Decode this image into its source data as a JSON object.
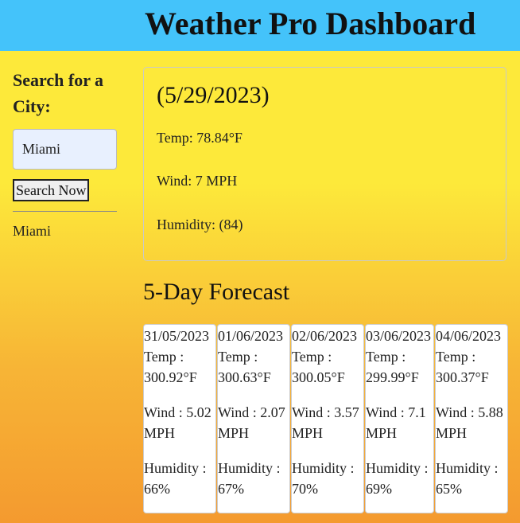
{
  "header": {
    "title": "Weather Pro Dashboard"
  },
  "sidebar": {
    "heading": "Search for a City:",
    "search_input": {
      "value": "Miami",
      "placeholder": ""
    },
    "search_button_label": "Search Now",
    "history": [
      "Miami"
    ]
  },
  "current": {
    "date": "(5/29/2023)",
    "temp": "Temp: 78.84°F",
    "wind": "Wind: 7 MPH",
    "humidity": "Humidity: (84)"
  },
  "forecast": {
    "title": "5-Day Forecast",
    "days": [
      {
        "date": "31/05/2023",
        "temp_label": "Temp :",
        "temp": "300.92°F",
        "wind_label": "Wind : 5.02",
        "wind_unit": "MPH",
        "humidity_label": "Humidity :",
        "humidity": "66%"
      },
      {
        "date": "01/06/2023",
        "temp_label": "Temp :",
        "temp": "300.63°F",
        "wind_label": "Wind : 2.07",
        "wind_unit": "MPH",
        "humidity_label": "Humidity :",
        "humidity": "67%"
      },
      {
        "date": "02/06/2023",
        "temp_label": "Temp :",
        "temp": "300.05°F",
        "wind_label": "Wind : 3.57",
        "wind_unit": "MPH",
        "humidity_label": "Humidity :",
        "humidity": "70%"
      },
      {
        "date": "03/06/2023",
        "temp_label": "Temp :",
        "temp": "299.99°F",
        "wind_label": "Wind : 7.1",
        "wind_unit": "MPH",
        "humidity_label": "Humidity :",
        "humidity": "69%"
      },
      {
        "date": "04/06/2023",
        "temp_label": "Temp :",
        "temp": "300.37°F",
        "wind_label": "Wind : 5.88",
        "wind_unit": "MPH",
        "humidity_label": "Humidity :",
        "humidity": "65%"
      }
    ]
  },
  "colors": {
    "header_bg": "#44c3fa",
    "gradient_top": "#fde93a",
    "gradient_bottom": "#f49a2f",
    "card_bg": "#ffffff",
    "input_bg": "#e8f0fe"
  }
}
